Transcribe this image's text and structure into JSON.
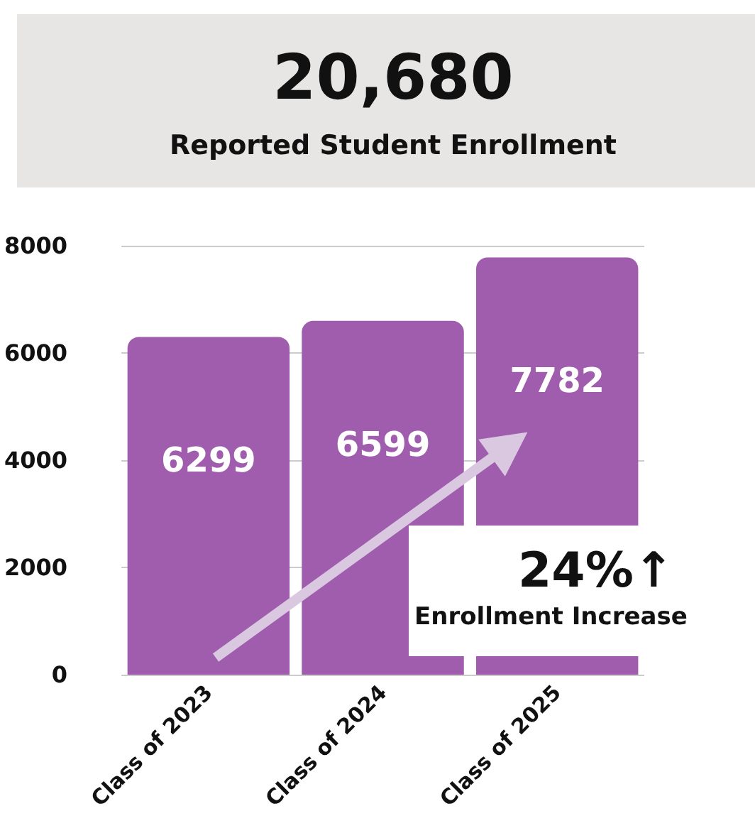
{
  "chart_data": {
    "type": "bar",
    "title": "20,680",
    "subtitle": "Reported Student Enrollment",
    "categories": [
      "Class of 2023",
      "Class of 2024",
      "Class of 2025"
    ],
    "values": [
      6299,
      6599,
      7782
    ],
    "color": "#a05cad",
    "ylim": [
      0,
      8000
    ],
    "yticks": [
      0,
      2000,
      4000,
      6000,
      8000
    ],
    "grid": "y",
    "data_labels": true,
    "annotations": [
      "24%↑",
      "Enrollment Increase"
    ]
  }
}
